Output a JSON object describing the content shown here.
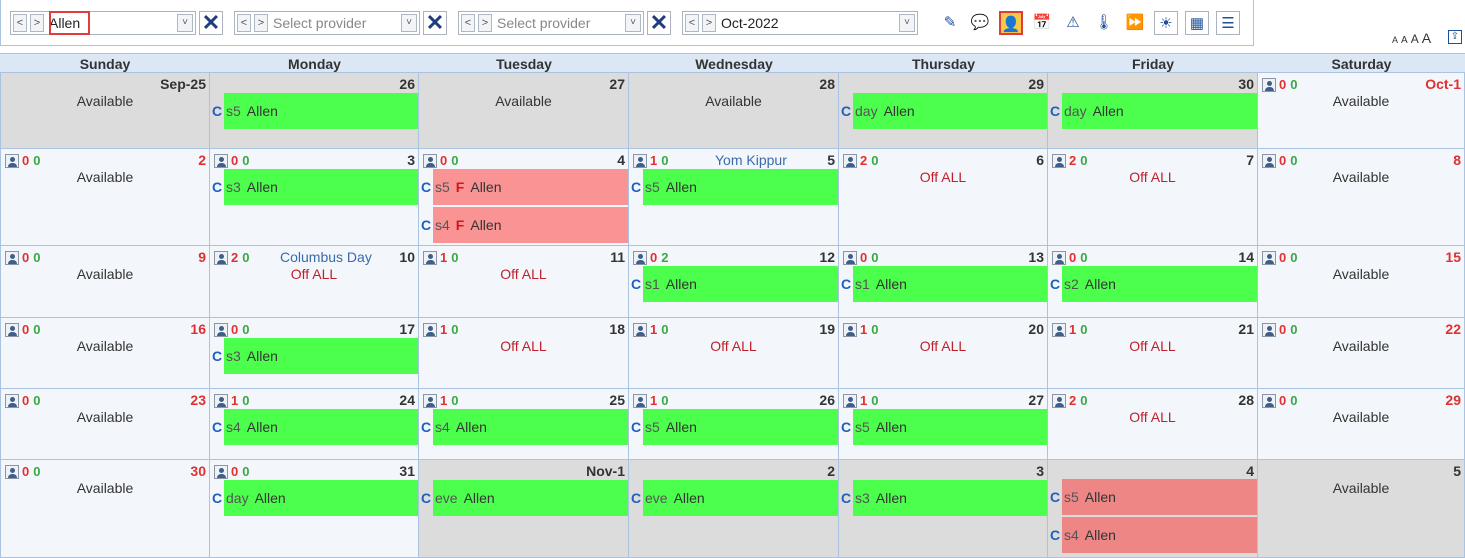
{
  "toolbar": {
    "selectors": [
      {
        "value": "Allen",
        "placeholder": false
      },
      {
        "value": "Select provider",
        "placeholder": true
      },
      {
        "value": "Select provider",
        "placeholder": true
      },
      {
        "value": "Oct-2022",
        "placeholder": false
      }
    ],
    "prev": "<",
    "next": ">",
    "dropdown": "˅",
    "clear": "✕",
    "icons": [
      "pencil-icon",
      "chat-icon",
      "person-icon",
      "calendar-icon",
      "warning-icon",
      "thermometer-icon",
      "fast-forward-icon",
      "brightness-icon",
      "calculator-icon",
      "list-icon"
    ],
    "icon_glyphs": [
      "✎",
      "💬",
      "👤",
      "📅",
      "⚠",
      "🌡",
      "⏩",
      "☀",
      "▦",
      "☰"
    ],
    "active_icon": "person-icon",
    "font_sizes": [
      "A",
      "A",
      "A",
      "A"
    ],
    "upload": "⇪"
  },
  "day_names": [
    "Sunday",
    "Monday",
    "Tuesday",
    "Wednesday",
    "Thursday",
    "Friday",
    "Saturday"
  ],
  "weeks": [
    [
      {
        "date": "Sep-25",
        "gray": true,
        "avail": "Available"
      },
      {
        "date": "26",
        "gray": true,
        "events": [
          {
            "c": "C",
            "shift": "s5",
            "name": "Allen"
          }
        ]
      },
      {
        "date": "27",
        "gray": true,
        "avail": "Available"
      },
      {
        "date": "28",
        "gray": true,
        "avail": "Available"
      },
      {
        "date": "29",
        "gray": true,
        "events": [
          {
            "c": "C",
            "shift": "day",
            "name": "Allen"
          }
        ]
      },
      {
        "date": "30",
        "gray": true,
        "events": [
          {
            "c": "C",
            "shift": "day",
            "name": "Allen"
          }
        ]
      },
      {
        "date": "Oct-1",
        "weekend": true,
        "counts": [
          "0",
          "0"
        ],
        "avail": "Available"
      }
    ],
    [
      {
        "date": "2",
        "weekend": true,
        "counts": [
          "0",
          "0"
        ],
        "avail": "Available"
      },
      {
        "date": "3",
        "counts": [
          "0",
          "0"
        ],
        "events": [
          {
            "c": "C",
            "shift": "s3",
            "name": "Allen"
          }
        ]
      },
      {
        "date": "4",
        "counts": [
          "0",
          "0"
        ],
        "events": [
          {
            "c": "C",
            "shift": "s5",
            "flag": "F",
            "name": "Allen",
            "red": true
          },
          {
            "c": "C",
            "shift": "s4",
            "flag": "F",
            "name": "Allen",
            "red": true
          }
        ]
      },
      {
        "date": "5",
        "counts": [
          "1",
          "0"
        ],
        "holiday": "Yom Kippur",
        "events": [
          {
            "c": "C",
            "shift": "s5",
            "name": "Allen"
          }
        ]
      },
      {
        "date": "6",
        "counts": [
          "2",
          "0"
        ],
        "off": "Off ALL"
      },
      {
        "date": "7",
        "counts": [
          "2",
          "0"
        ],
        "off": "Off ALL"
      },
      {
        "date": "8",
        "weekend": true,
        "counts": [
          "0",
          "0"
        ],
        "avail": "Available"
      }
    ],
    [
      {
        "date": "9",
        "weekend": true,
        "counts": [
          "0",
          "0"
        ],
        "avail": "Available"
      },
      {
        "date": "10",
        "counts": [
          "2",
          "0"
        ],
        "holiday": "Columbus Day",
        "off": "Off ALL"
      },
      {
        "date": "11",
        "counts": [
          "1",
          "0"
        ],
        "off": "Off ALL"
      },
      {
        "date": "12",
        "counts": [
          "0",
          "2"
        ],
        "events": [
          {
            "c": "C",
            "shift": "s1",
            "name": "Allen"
          }
        ]
      },
      {
        "date": "13",
        "counts": [
          "0",
          "0"
        ],
        "events": [
          {
            "c": "C",
            "shift": "s1",
            "name": "Allen"
          }
        ]
      },
      {
        "date": "14",
        "counts": [
          "0",
          "0"
        ],
        "events": [
          {
            "c": "C",
            "shift": "s2",
            "name": "Allen"
          }
        ]
      },
      {
        "date": "15",
        "weekend": true,
        "counts": [
          "0",
          "0"
        ],
        "avail": "Available"
      }
    ],
    [
      {
        "date": "16",
        "weekend": true,
        "counts": [
          "0",
          "0"
        ],
        "avail": "Available"
      },
      {
        "date": "17",
        "counts": [
          "0",
          "0"
        ],
        "events": [
          {
            "c": "C",
            "shift": "s3",
            "name": "Allen"
          }
        ]
      },
      {
        "date": "18",
        "counts": [
          "1",
          "0"
        ],
        "off": "Off ALL"
      },
      {
        "date": "19",
        "counts": [
          "1",
          "0"
        ],
        "off": "Off ALL"
      },
      {
        "date": "20",
        "counts": [
          "1",
          "0"
        ],
        "off": "Off ALL"
      },
      {
        "date": "21",
        "counts": [
          "1",
          "0"
        ],
        "off": "Off ALL"
      },
      {
        "date": "22",
        "weekend": true,
        "counts": [
          "0",
          "0"
        ],
        "avail": "Available"
      }
    ],
    [
      {
        "date": "23",
        "weekend": true,
        "counts": [
          "0",
          "0"
        ],
        "avail": "Available"
      },
      {
        "date": "24",
        "counts": [
          "1",
          "0"
        ],
        "events": [
          {
            "c": "C",
            "shift": "s4",
            "name": "Allen"
          }
        ]
      },
      {
        "date": "25",
        "counts": [
          "1",
          "0"
        ],
        "events": [
          {
            "c": "C",
            "shift": "s4",
            "name": "Allen"
          }
        ]
      },
      {
        "date": "26",
        "counts": [
          "1",
          "0"
        ],
        "events": [
          {
            "c": "C",
            "shift": "s5",
            "name": "Allen"
          }
        ]
      },
      {
        "date": "27",
        "counts": [
          "1",
          "0"
        ],
        "events": [
          {
            "c": "C",
            "shift": "s5",
            "name": "Allen"
          }
        ]
      },
      {
        "date": "28",
        "counts": [
          "2",
          "0"
        ],
        "off": "Off ALL"
      },
      {
        "date": "29",
        "weekend": true,
        "counts": [
          "0",
          "0"
        ],
        "avail": "Available"
      }
    ],
    [
      {
        "date": "30",
        "weekend": true,
        "counts": [
          "0",
          "0"
        ],
        "avail": "Available"
      },
      {
        "date": "31",
        "counts": [
          "0",
          "0"
        ],
        "events": [
          {
            "c": "C",
            "shift": "day",
            "name": "Allen"
          }
        ]
      },
      {
        "date": "Nov-1",
        "gray": true,
        "events": [
          {
            "c": "C",
            "shift": "eve",
            "name": "Allen"
          }
        ]
      },
      {
        "date": "2",
        "gray": true,
        "events": [
          {
            "c": "C",
            "shift": "eve",
            "name": "Allen"
          }
        ]
      },
      {
        "date": "3",
        "gray": true,
        "events": [
          {
            "c": "C",
            "shift": "s3",
            "name": "Allen"
          }
        ]
      },
      {
        "date": "4",
        "gray": true,
        "events": [
          {
            "c": "C",
            "shift": "s5",
            "name": "Allen",
            "red2": true
          },
          {
            "c": "C",
            "shift": "s4",
            "name": "Allen",
            "red2": true
          }
        ]
      },
      {
        "date": "5",
        "gray": true,
        "avail": "Available"
      }
    ]
  ]
}
